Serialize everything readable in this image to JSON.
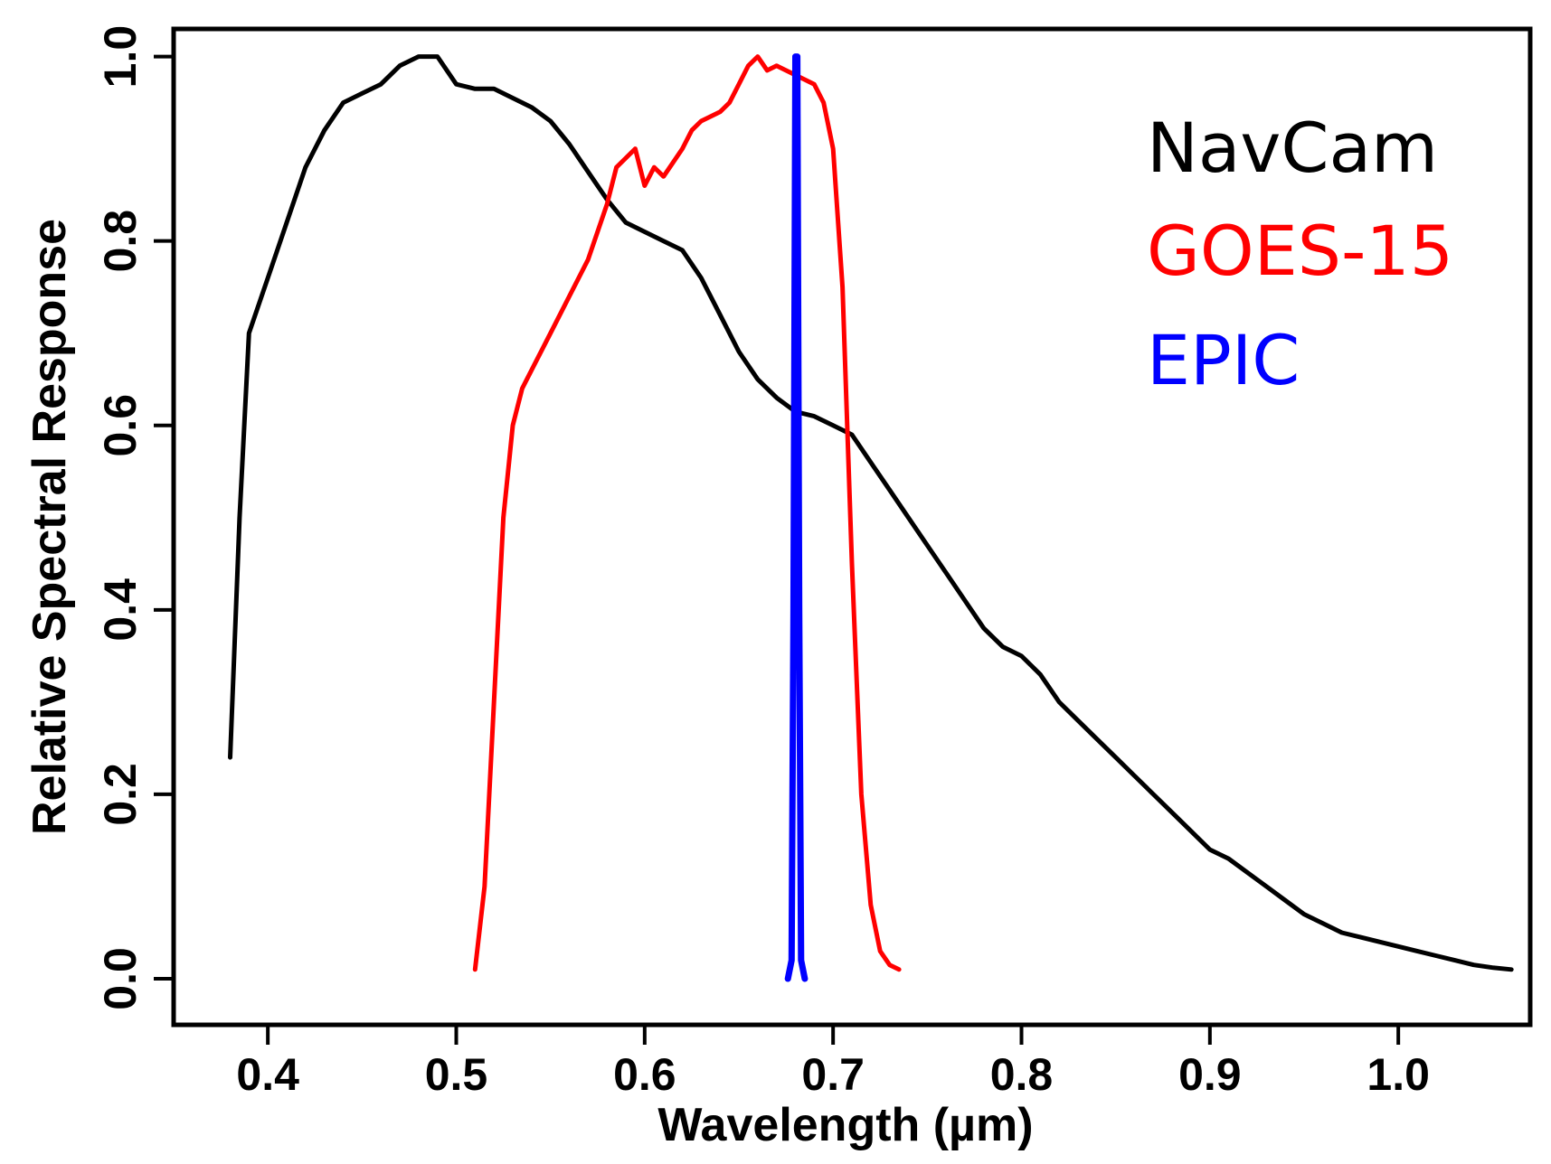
{
  "chart_data": {
    "type": "line",
    "title": "",
    "xlabel": "Wavelength (µm)",
    "ylabel": "Relative Spectral Response",
    "xlim": [
      0.35,
      1.07
    ],
    "ylim": [
      -0.05,
      1.03
    ],
    "grid": false,
    "legend_position": "top-right",
    "x_ticks": [
      {
        "value": 0.4,
        "label": "0.4"
      },
      {
        "value": 0.5,
        "label": "0.5"
      },
      {
        "value": 0.6,
        "label": "0.6"
      },
      {
        "value": 0.7,
        "label": "0.7"
      },
      {
        "value": 0.8,
        "label": "0.8"
      },
      {
        "value": 0.9,
        "label": "0.9"
      },
      {
        "value": 1.0,
        "label": "1.0"
      }
    ],
    "y_ticks": [
      {
        "value": 0.0,
        "label": "0.0"
      },
      {
        "value": 0.2,
        "label": "0.2"
      },
      {
        "value": 0.4,
        "label": "0.4"
      },
      {
        "value": 0.6,
        "label": "0.6"
      },
      {
        "value": 0.8,
        "label": "0.8"
      },
      {
        "value": 1.0,
        "label": "1.0"
      }
    ],
    "series": [
      {
        "name": "NavCam",
        "color": "#000000",
        "x": [
          0.38,
          0.385,
          0.39,
          0.4,
          0.41,
          0.42,
          0.43,
          0.44,
          0.45,
          0.46,
          0.47,
          0.48,
          0.49,
          0.5,
          0.51,
          0.52,
          0.53,
          0.54,
          0.55,
          0.56,
          0.57,
          0.58,
          0.59,
          0.6,
          0.61,
          0.62,
          0.63,
          0.64,
          0.65,
          0.66,
          0.67,
          0.68,
          0.69,
          0.7,
          0.71,
          0.72,
          0.73,
          0.74,
          0.75,
          0.76,
          0.77,
          0.78,
          0.79,
          0.8,
          0.81,
          0.82,
          0.83,
          0.84,
          0.85,
          0.86,
          0.87,
          0.88,
          0.89,
          0.9,
          0.91,
          0.92,
          0.93,
          0.94,
          0.95,
          0.96,
          0.97,
          0.98,
          0.99,
          1.0,
          1.01,
          1.02,
          1.03,
          1.04,
          1.05,
          1.06
        ],
        "y": [
          0.24,
          0.5,
          0.7,
          0.76,
          0.82,
          0.88,
          0.92,
          0.95,
          0.96,
          0.97,
          0.99,
          1.0,
          1.0,
          0.97,
          0.965,
          0.965,
          0.955,
          0.945,
          0.93,
          0.905,
          0.875,
          0.845,
          0.82,
          0.81,
          0.8,
          0.79,
          0.76,
          0.72,
          0.68,
          0.65,
          0.63,
          0.615,
          0.61,
          0.6,
          0.59,
          0.56,
          0.53,
          0.5,
          0.47,
          0.44,
          0.41,
          0.38,
          0.36,
          0.35,
          0.33,
          0.3,
          0.28,
          0.26,
          0.24,
          0.22,
          0.2,
          0.18,
          0.16,
          0.14,
          0.13,
          0.115,
          0.1,
          0.085,
          0.07,
          0.06,
          0.05,
          0.045,
          0.04,
          0.035,
          0.03,
          0.025,
          0.02,
          0.015,
          0.012,
          0.01
        ]
      },
      {
        "name": "GOES-15",
        "color": "#ff0000",
        "x": [
          0.51,
          0.515,
          0.52,
          0.525,
          0.53,
          0.535,
          0.54,
          0.55,
          0.56,
          0.57,
          0.58,
          0.585,
          0.59,
          0.595,
          0.6,
          0.605,
          0.61,
          0.62,
          0.625,
          0.63,
          0.64,
          0.645,
          0.65,
          0.655,
          0.66,
          0.665,
          0.67,
          0.675,
          0.68,
          0.685,
          0.69,
          0.695,
          0.7,
          0.705,
          0.71,
          0.715,
          0.72,
          0.725,
          0.73,
          0.735
        ],
        "y": [
          0.01,
          0.1,
          0.3,
          0.5,
          0.6,
          0.64,
          0.66,
          0.7,
          0.74,
          0.78,
          0.84,
          0.88,
          0.89,
          0.9,
          0.86,
          0.88,
          0.87,
          0.9,
          0.92,
          0.93,
          0.94,
          0.95,
          0.97,
          0.99,
          1.0,
          0.985,
          0.99,
          0.985,
          0.98,
          0.975,
          0.97,
          0.95,
          0.9,
          0.75,
          0.45,
          0.2,
          0.08,
          0.03,
          0.015,
          0.01
        ]
      },
      {
        "name": "EPIC",
        "color": "#0000ff",
        "x": [
          0.676,
          0.678,
          0.679,
          0.68,
          0.681,
          0.682,
          0.683,
          0.685
        ],
        "y": [
          0.0,
          0.02,
          0.4,
          1.0,
          1.0,
          0.4,
          0.02,
          0.0
        ]
      }
    ]
  }
}
